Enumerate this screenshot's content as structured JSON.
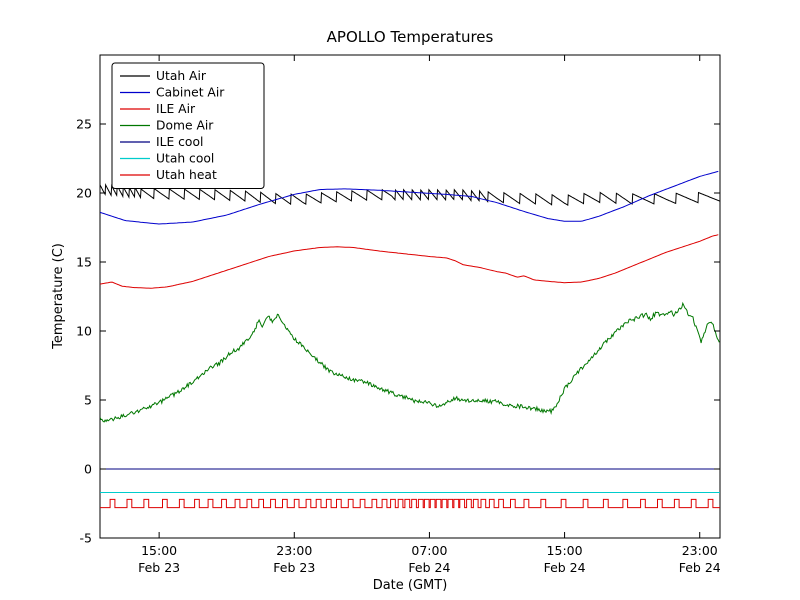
{
  "chart_data": {
    "type": "line",
    "title": "APOLLO Temperatures",
    "xlabel": "Date (GMT)",
    "ylabel": "Temperature (C)",
    "x_unit": "hours since Feb 23 00:00 GMT",
    "xlim": [
      11.5,
      48.2
    ],
    "ylim": [
      -5,
      30
    ],
    "grid": false,
    "legend_position": "upper left",
    "yticks": [
      {
        "v": -5,
        "label": "-5"
      },
      {
        "v": 0,
        "label": "0"
      },
      {
        "v": 5,
        "label": "5"
      },
      {
        "v": 10,
        "label": "10"
      },
      {
        "v": 15,
        "label": "15"
      },
      {
        "v": 20,
        "label": "20"
      },
      {
        "v": 25,
        "label": "25"
      }
    ],
    "xticks": [
      {
        "v": 15,
        "label": "15:00",
        "sub": "Feb 23"
      },
      {
        "v": 23,
        "label": "23:00",
        "sub": "Feb 23"
      },
      {
        "v": 31,
        "label": "07:00",
        "sub": "Feb 24"
      },
      {
        "v": 39,
        "label": "15:00",
        "sub": "Feb 24"
      },
      {
        "v": 47,
        "label": "23:00",
        "sub": "Feb 24"
      }
    ],
    "series": [
      {
        "name": "Utah Air",
        "color": "#000000",
        "keyframes": [
          [
            11.5,
            19.9
          ],
          [
            13,
            19.7
          ],
          [
            15,
            19.55
          ],
          [
            18,
            19.5
          ],
          [
            20,
            19.4
          ],
          [
            22,
            19.2
          ],
          [
            23.5,
            19.15
          ],
          [
            25,
            19.3
          ],
          [
            27,
            19.45
          ],
          [
            29,
            19.5
          ],
          [
            31,
            19.5
          ],
          [
            33,
            19.5
          ],
          [
            35,
            19.3
          ],
          [
            37,
            19.2
          ],
          [
            39,
            19.1
          ],
          [
            41,
            19.3
          ],
          [
            43,
            19.2
          ],
          [
            45,
            19.2
          ],
          [
            47,
            19.3
          ],
          [
            48.2,
            19.4
          ]
        ],
        "waveform": {
          "type": "sawtooth",
          "amp": 0.75,
          "periods": [
            [
              11.5,
              0.35
            ],
            [
              14,
              0.9
            ],
            [
              28.8,
              0.5
            ],
            [
              34.5,
              0.95
            ],
            [
              43,
              1.3
            ]
          ]
        }
      },
      {
        "name": "Cabinet Air",
        "color": "#0000cc",
        "keyframes": [
          [
            11.5,
            18.6
          ],
          [
            13,
            18.0
          ],
          [
            15,
            17.75
          ],
          [
            17,
            17.9
          ],
          [
            19,
            18.4
          ],
          [
            21,
            19.2
          ],
          [
            23,
            19.9
          ],
          [
            24.5,
            20.25
          ],
          [
            26,
            20.3
          ],
          [
            28,
            20.2
          ],
          [
            30,
            20.05
          ],
          [
            32,
            19.9
          ],
          [
            33.5,
            19.75
          ],
          [
            35,
            19.3
          ],
          [
            36.5,
            18.7
          ],
          [
            38,
            18.15
          ],
          [
            39,
            17.95
          ],
          [
            40,
            17.95
          ],
          [
            41,
            18.3
          ],
          [
            42.5,
            19.0
          ],
          [
            44,
            19.8
          ],
          [
            45.5,
            20.5
          ],
          [
            47,
            21.2
          ],
          [
            48.2,
            21.6
          ]
        ]
      },
      {
        "name": "ILE Air",
        "color": "#dd0000",
        "keyframes": [
          [
            11.5,
            13.4
          ],
          [
            12.2,
            13.55
          ],
          [
            12.8,
            13.25
          ],
          [
            13.5,
            13.15
          ],
          [
            14.5,
            13.1
          ],
          [
            15.5,
            13.2
          ],
          [
            17,
            13.6
          ],
          [
            18.5,
            14.2
          ],
          [
            20,
            14.8
          ],
          [
            21.5,
            15.4
          ],
          [
            23,
            15.8
          ],
          [
            24.5,
            16.05
          ],
          [
            25.5,
            16.1
          ],
          [
            26.5,
            16.05
          ],
          [
            28,
            15.8
          ],
          [
            29.5,
            15.6
          ],
          [
            31,
            15.4
          ],
          [
            32,
            15.3
          ],
          [
            32.5,
            15.1
          ],
          [
            33,
            14.8
          ],
          [
            34,
            14.6
          ],
          [
            35,
            14.3
          ],
          [
            35.5,
            14.2
          ],
          [
            36.2,
            13.9
          ],
          [
            36.6,
            14.0
          ],
          [
            37.2,
            13.7
          ],
          [
            38,
            13.6
          ],
          [
            39,
            13.5
          ],
          [
            40,
            13.55
          ],
          [
            41,
            13.8
          ],
          [
            42,
            14.2
          ],
          [
            43,
            14.7
          ],
          [
            44,
            15.2
          ],
          [
            45,
            15.7
          ],
          [
            46,
            16.1
          ],
          [
            47,
            16.5
          ],
          [
            47.8,
            16.9
          ],
          [
            48.2,
            17.0
          ]
        ]
      },
      {
        "name": "Dome Air",
        "color": "#007700",
        "keyframes": [
          [
            11.5,
            3.6
          ],
          [
            12.0,
            3.5
          ],
          [
            13.0,
            3.9
          ],
          [
            14.0,
            4.3
          ],
          [
            15.0,
            4.8
          ],
          [
            16.0,
            5.5
          ],
          [
            17.0,
            6.3
          ],
          [
            18.0,
            7.3
          ],
          [
            18.6,
            7.7
          ],
          [
            19.2,
            8.4
          ],
          [
            19.8,
            8.8
          ],
          [
            20.3,
            9.5
          ],
          [
            20.7,
            10.2
          ],
          [
            20.9,
            10.9
          ],
          [
            21.1,
            10.4
          ],
          [
            21.4,
            11.1
          ],
          [
            21.7,
            10.7
          ],
          [
            22.0,
            11.2
          ],
          [
            22.4,
            10.4
          ],
          [
            22.8,
            9.7
          ],
          [
            23.2,
            9.2
          ],
          [
            23.7,
            8.7
          ],
          [
            24.2,
            8.1
          ],
          [
            24.7,
            7.5
          ],
          [
            25.2,
            7.0
          ],
          [
            25.7,
            6.8
          ],
          [
            26.2,
            6.6
          ],
          [
            26.7,
            6.4
          ],
          [
            27.2,
            6.3
          ],
          [
            27.8,
            6.0
          ],
          [
            28.4,
            5.7
          ],
          [
            29.0,
            5.4
          ],
          [
            29.6,
            5.2
          ],
          [
            30.2,
            4.9
          ],
          [
            30.8,
            4.8
          ],
          [
            31.4,
            4.6
          ],
          [
            31.9,
            4.7
          ],
          [
            32.2,
            5.0
          ],
          [
            32.6,
            5.1
          ],
          [
            33.0,
            5.0
          ],
          [
            33.5,
            4.9
          ],
          [
            34.0,
            5.0
          ],
          [
            34.5,
            4.9
          ],
          [
            35.0,
            4.9
          ],
          [
            35.4,
            4.6
          ],
          [
            36.0,
            4.6
          ],
          [
            36.6,
            4.5
          ],
          [
            37.2,
            4.4
          ],
          [
            37.8,
            4.2
          ],
          [
            38.2,
            4.2
          ],
          [
            38.5,
            4.6
          ],
          [
            39.0,
            5.8
          ],
          [
            39.5,
            6.6
          ],
          [
            40.0,
            7.3
          ],
          [
            40.5,
            7.9
          ],
          [
            41.0,
            8.6
          ],
          [
            41.5,
            9.3
          ],
          [
            42.0,
            9.9
          ],
          [
            42.5,
            10.5
          ],
          [
            43.0,
            10.8
          ],
          [
            43.4,
            11.0
          ],
          [
            43.8,
            11.2
          ],
          [
            44.1,
            10.9
          ],
          [
            44.4,
            11.3
          ],
          [
            44.8,
            11.1
          ],
          [
            45.2,
            11.4
          ],
          [
            45.5,
            11.2
          ],
          [
            45.8,
            11.6
          ],
          [
            46.0,
            11.9
          ],
          [
            46.3,
            11.3
          ],
          [
            46.6,
            10.9
          ],
          [
            46.9,
            9.9
          ],
          [
            47.1,
            9.2
          ],
          [
            47.4,
            10.3
          ],
          [
            47.7,
            10.8
          ],
          [
            48.0,
            9.6
          ],
          [
            48.2,
            9.0
          ]
        ],
        "waveform": {
          "type": "noise",
          "amp": 0.3
        }
      },
      {
        "name": "ILE cool",
        "color": "#000080",
        "keyframes": [
          [
            11.5,
            0
          ],
          [
            48.2,
            0
          ]
        ]
      },
      {
        "name": "Utah cool",
        "color": "#00cccc",
        "keyframes": [
          [
            11.5,
            -1.7
          ],
          [
            48.2,
            -1.7
          ]
        ]
      },
      {
        "name": "Utah heat",
        "color": "#dd0000",
        "waveform": {
          "type": "square",
          "low": -2.8,
          "high": -2.2,
          "pulse_width": 0.28,
          "pulse_starts": [
            12.1,
            13.1,
            14.1,
            15.2,
            16.2,
            17.1,
            17.9,
            18.7,
            19.5,
            20.2,
            20.9,
            21.6,
            22.3,
            23.0,
            23.7,
            24.3,
            24.9,
            25.5,
            26.2,
            26.9,
            27.6,
            28.2,
            28.7,
            29.15,
            29.55,
            29.95,
            30.35,
            30.7,
            31.05,
            31.4,
            31.75,
            32.1,
            32.45,
            32.8,
            33.2,
            33.6,
            34.05,
            34.55,
            35.1,
            35.8,
            36.6,
            37.6,
            38.8,
            40.1,
            41.3,
            42.45,
            43.5,
            44.5,
            45.5,
            46.5,
            47.5
          ]
        }
      }
    ]
  }
}
